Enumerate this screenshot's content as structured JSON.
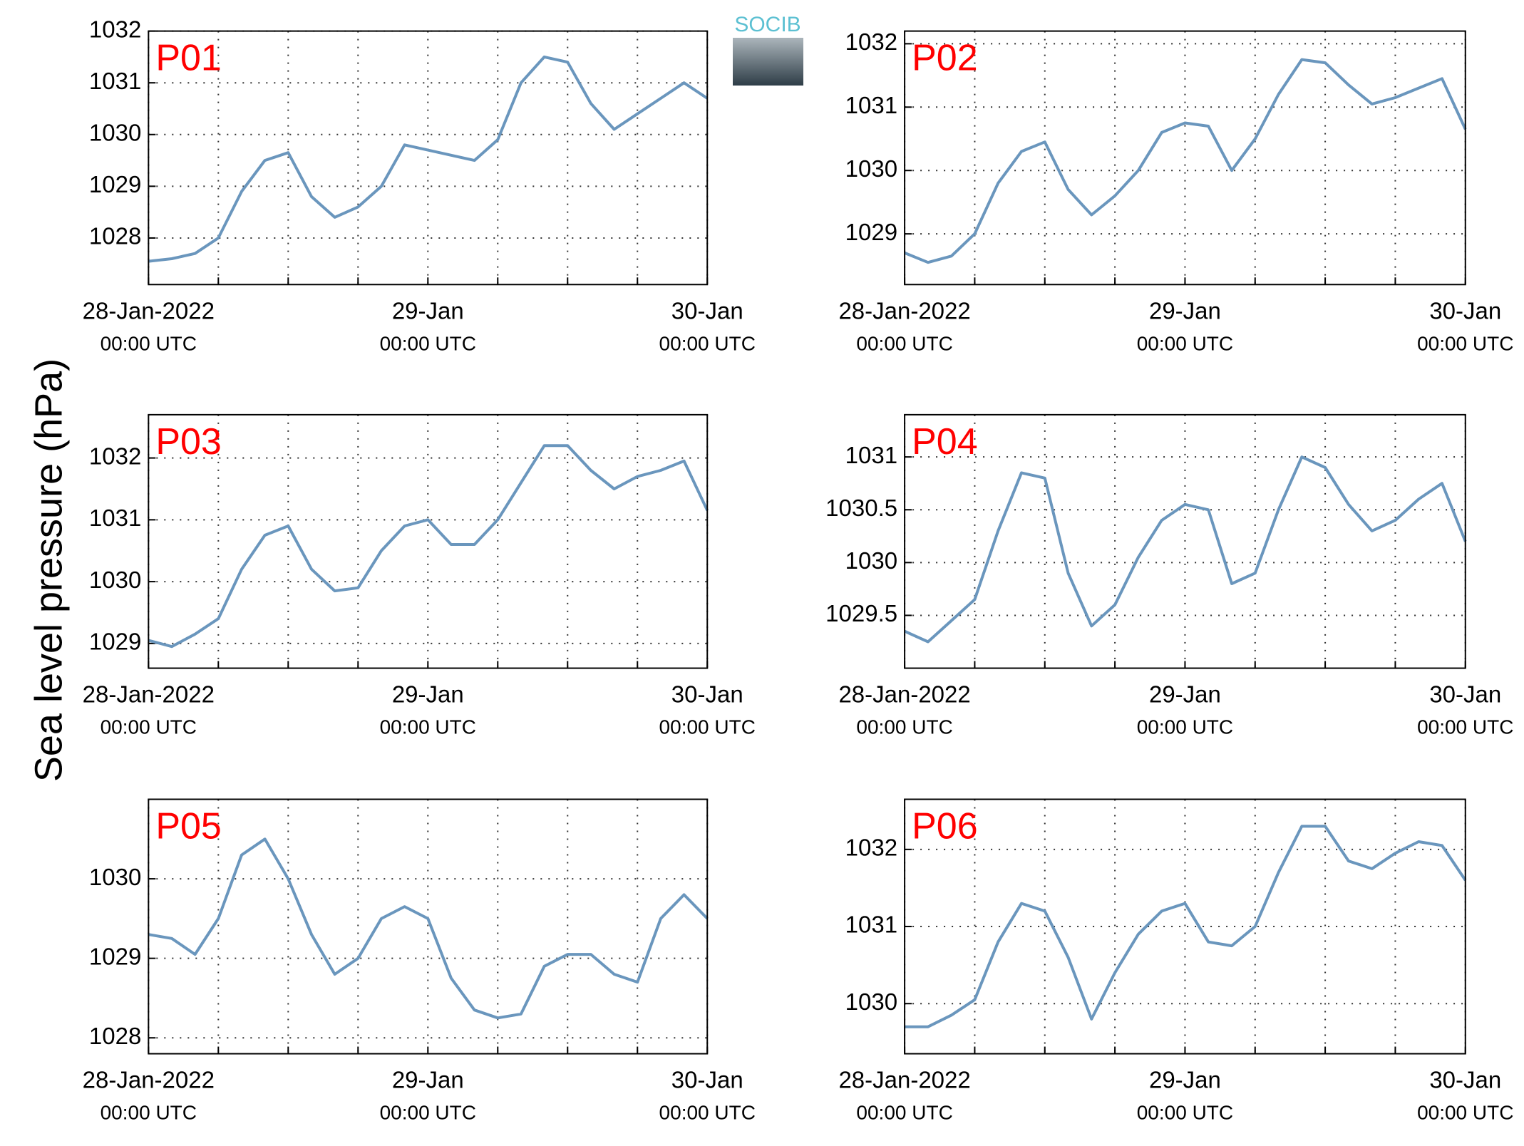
{
  "ylabel": "Sea level pressure (hPa)",
  "logo": "SOCIB",
  "chart_data": [
    {
      "type": "line",
      "title": "P01",
      "color": "#6a96bd",
      "x": [
        "2022-01-28 00:00",
        "2022-01-28 02:00",
        "2022-01-28 04:00",
        "2022-01-28 06:00",
        "2022-01-28 08:00",
        "2022-01-28 10:00",
        "2022-01-28 12:00",
        "2022-01-28 14:00",
        "2022-01-28 16:00",
        "2022-01-28 18:00",
        "2022-01-28 20:00",
        "2022-01-28 22:00",
        "2022-01-29 00:00",
        "2022-01-29 02:00",
        "2022-01-29 04:00",
        "2022-01-29 06:00",
        "2022-01-29 08:00",
        "2022-01-29 10:00",
        "2022-01-29 12:00",
        "2022-01-29 14:00",
        "2022-01-29 16:00",
        "2022-01-29 18:00",
        "2022-01-29 20:00",
        "2022-01-29 22:00",
        "2022-01-30 00:00"
      ],
      "values": [
        1027.55,
        1027.6,
        1027.7,
        1028.0,
        1028.9,
        1029.5,
        1029.65,
        1028.8,
        1028.4,
        1028.6,
        1029.0,
        1029.8,
        1029.7,
        1029.6,
        1029.5,
        1029.9,
        1031.0,
        1031.5,
        1031.4,
        1030.6,
        1030.1,
        1030.4,
        1030.7,
        1031.0,
        1030.7
      ],
      "xlim": [
        "2022-01-28 00:00",
        "2022-01-30 00:00"
      ],
      "xticks": [
        {
          "value": "2022-01-28 00:00",
          "label": "28-Jan-2022",
          "sublabel": "00:00 UTC"
        },
        {
          "value": "2022-01-28 06:00",
          "label": null
        },
        {
          "value": "2022-01-28 12:00",
          "label": null
        },
        {
          "value": "2022-01-28 18:00",
          "label": null
        },
        {
          "value": "2022-01-29 00:00",
          "label": "29-Jan",
          "sublabel": "00:00 UTC"
        },
        {
          "value": "2022-01-29 06:00",
          "label": null
        },
        {
          "value": "2022-01-29 12:00",
          "label": null
        },
        {
          "value": "2022-01-29 18:00",
          "label": null
        },
        {
          "value": "2022-01-30 00:00",
          "label": "30-Jan",
          "sublabel": "00:00 UTC"
        }
      ],
      "ylim": [
        1027.1,
        1032
      ],
      "yticks": [
        1028,
        1029,
        1030,
        1031,
        1032
      ],
      "grid": true
    },
    {
      "type": "line",
      "title": "P02",
      "color": "#6a96bd",
      "x": [
        "2022-01-28 00:00",
        "2022-01-28 02:00",
        "2022-01-28 04:00",
        "2022-01-28 06:00",
        "2022-01-28 08:00",
        "2022-01-28 10:00",
        "2022-01-28 12:00",
        "2022-01-28 14:00",
        "2022-01-28 16:00",
        "2022-01-28 18:00",
        "2022-01-28 20:00",
        "2022-01-28 22:00",
        "2022-01-29 00:00",
        "2022-01-29 02:00",
        "2022-01-29 04:00",
        "2022-01-29 06:00",
        "2022-01-29 08:00",
        "2022-01-29 10:00",
        "2022-01-29 12:00",
        "2022-01-29 14:00",
        "2022-01-29 16:00",
        "2022-01-29 18:00",
        "2022-01-29 20:00",
        "2022-01-29 22:00",
        "2022-01-30 00:00"
      ],
      "values": [
        1028.7,
        1028.55,
        1028.65,
        1029.0,
        1029.8,
        1030.3,
        1030.45,
        1029.7,
        1029.3,
        1029.6,
        1030.0,
        1030.6,
        1030.75,
        1030.7,
        1030.0,
        1030.5,
        1031.2,
        1031.75,
        1031.7,
        1031.35,
        1031.05,
        1031.15,
        1031.3,
        1031.45,
        1030.65
      ],
      "xlim": [
        "2022-01-28 00:00",
        "2022-01-30 00:00"
      ],
      "xticks": [
        {
          "value": "2022-01-28 00:00",
          "label": "28-Jan-2022",
          "sublabel": "00:00 UTC"
        },
        {
          "value": "2022-01-28 06:00",
          "label": null
        },
        {
          "value": "2022-01-28 12:00",
          "label": null
        },
        {
          "value": "2022-01-28 18:00",
          "label": null
        },
        {
          "value": "2022-01-29 00:00",
          "label": "29-Jan",
          "sublabel": "00:00 UTC"
        },
        {
          "value": "2022-01-29 06:00",
          "label": null
        },
        {
          "value": "2022-01-29 12:00",
          "label": null
        },
        {
          "value": "2022-01-29 18:00",
          "label": null
        },
        {
          "value": "2022-01-30 00:00",
          "label": "30-Jan",
          "sublabel": "00:00 UTC"
        }
      ],
      "ylim": [
        1028.2,
        1032.2
      ],
      "yticks": [
        1029,
        1030,
        1031,
        1032
      ],
      "grid": true
    },
    {
      "type": "line",
      "title": "P03",
      "color": "#6a96bd",
      "x": [
        "2022-01-28 00:00",
        "2022-01-28 02:00",
        "2022-01-28 04:00",
        "2022-01-28 06:00",
        "2022-01-28 08:00",
        "2022-01-28 10:00",
        "2022-01-28 12:00",
        "2022-01-28 14:00",
        "2022-01-28 16:00",
        "2022-01-28 18:00",
        "2022-01-28 20:00",
        "2022-01-28 22:00",
        "2022-01-29 00:00",
        "2022-01-29 02:00",
        "2022-01-29 04:00",
        "2022-01-29 06:00",
        "2022-01-29 08:00",
        "2022-01-29 10:00",
        "2022-01-29 12:00",
        "2022-01-29 14:00",
        "2022-01-29 16:00",
        "2022-01-29 18:00",
        "2022-01-29 20:00",
        "2022-01-29 22:00",
        "2022-01-30 00:00"
      ],
      "values": [
        1029.05,
        1028.95,
        1029.15,
        1029.4,
        1030.2,
        1030.75,
        1030.9,
        1030.2,
        1029.85,
        1029.9,
        1030.5,
        1030.9,
        1031.0,
        1030.6,
        1030.6,
        1031.0,
        1031.6,
        1032.2,
        1032.2,
        1031.8,
        1031.5,
        1031.7,
        1031.8,
        1031.95,
        1031.15
      ],
      "xlim": [
        "2022-01-28 00:00",
        "2022-01-30 00:00"
      ],
      "xticks": [
        {
          "value": "2022-01-28 00:00",
          "label": "28-Jan-2022",
          "sublabel": "00:00 UTC"
        },
        {
          "value": "2022-01-28 06:00",
          "label": null
        },
        {
          "value": "2022-01-28 12:00",
          "label": null
        },
        {
          "value": "2022-01-28 18:00",
          "label": null
        },
        {
          "value": "2022-01-29 00:00",
          "label": "29-Jan",
          "sublabel": "00:00 UTC"
        },
        {
          "value": "2022-01-29 06:00",
          "label": null
        },
        {
          "value": "2022-01-29 12:00",
          "label": null
        },
        {
          "value": "2022-01-29 18:00",
          "label": null
        },
        {
          "value": "2022-01-30 00:00",
          "label": "30-Jan",
          "sublabel": "00:00 UTC"
        }
      ],
      "ylim": [
        1028.6,
        1032.7
      ],
      "yticks": [
        1029,
        1030,
        1031,
        1032
      ],
      "grid": true
    },
    {
      "type": "line",
      "title": "P04",
      "color": "#6a96bd",
      "x": [
        "2022-01-28 00:00",
        "2022-01-28 02:00",
        "2022-01-28 04:00",
        "2022-01-28 06:00",
        "2022-01-28 08:00",
        "2022-01-28 10:00",
        "2022-01-28 12:00",
        "2022-01-28 14:00",
        "2022-01-28 16:00",
        "2022-01-28 18:00",
        "2022-01-28 20:00",
        "2022-01-28 22:00",
        "2022-01-29 00:00",
        "2022-01-29 02:00",
        "2022-01-29 04:00",
        "2022-01-29 06:00",
        "2022-01-29 08:00",
        "2022-01-29 10:00",
        "2022-01-29 12:00",
        "2022-01-29 14:00",
        "2022-01-29 16:00",
        "2022-01-29 18:00",
        "2022-01-29 20:00",
        "2022-01-29 22:00",
        "2022-01-30 00:00"
      ],
      "values": [
        1029.35,
        1029.25,
        1029.45,
        1029.65,
        1030.3,
        1030.85,
        1030.8,
        1029.9,
        1029.4,
        1029.6,
        1030.05,
        1030.4,
        1030.55,
        1030.5,
        1029.8,
        1029.9,
        1030.5,
        1031.0,
        1030.9,
        1030.55,
        1030.3,
        1030.4,
        1030.6,
        1030.75,
        1030.2
      ],
      "xlim": [
        "2022-01-28 00:00",
        "2022-01-30 00:00"
      ],
      "xticks": [
        {
          "value": "2022-01-28 00:00",
          "label": "28-Jan-2022",
          "sublabel": "00:00 UTC"
        },
        {
          "value": "2022-01-28 06:00",
          "label": null
        },
        {
          "value": "2022-01-28 12:00",
          "label": null
        },
        {
          "value": "2022-01-28 18:00",
          "label": null
        },
        {
          "value": "2022-01-29 00:00",
          "label": "29-Jan",
          "sublabel": "00:00 UTC"
        },
        {
          "value": "2022-01-29 06:00",
          "label": null
        },
        {
          "value": "2022-01-29 12:00",
          "label": null
        },
        {
          "value": "2022-01-29 18:00",
          "label": null
        },
        {
          "value": "2022-01-30 00:00",
          "label": "30-Jan",
          "sublabel": "00:00 UTC"
        }
      ],
      "ylim": [
        1029.0,
        1031.4
      ],
      "yticks": [
        1029.5,
        1030,
        1030.5,
        1031
      ],
      "grid": true
    },
    {
      "type": "line",
      "title": "P05",
      "color": "#6a96bd",
      "x": [
        "2022-01-28 00:00",
        "2022-01-28 02:00",
        "2022-01-28 04:00",
        "2022-01-28 06:00",
        "2022-01-28 08:00",
        "2022-01-28 10:00",
        "2022-01-28 12:00",
        "2022-01-28 14:00",
        "2022-01-28 16:00",
        "2022-01-28 18:00",
        "2022-01-28 20:00",
        "2022-01-28 22:00",
        "2022-01-29 00:00",
        "2022-01-29 02:00",
        "2022-01-29 04:00",
        "2022-01-29 06:00",
        "2022-01-29 08:00",
        "2022-01-29 10:00",
        "2022-01-29 12:00",
        "2022-01-29 14:00",
        "2022-01-29 16:00",
        "2022-01-29 18:00",
        "2022-01-29 20:00",
        "2022-01-29 22:00",
        "2022-01-30 00:00"
      ],
      "values": [
        1029.3,
        1029.25,
        1029.05,
        1029.5,
        1030.3,
        1030.5,
        1030.0,
        1029.3,
        1028.8,
        1029.0,
        1029.5,
        1029.65,
        1029.5,
        1028.75,
        1028.35,
        1028.25,
        1028.3,
        1028.9,
        1029.05,
        1029.05,
        1028.8,
        1028.7,
        1029.5,
        1029.8,
        1029.5
      ],
      "xlim": [
        "2022-01-28 00:00",
        "2022-01-30 00:00"
      ],
      "xticks": [
        {
          "value": "2022-01-28 00:00",
          "label": "28-Jan-2022",
          "sublabel": "00:00 UTC"
        },
        {
          "value": "2022-01-28 06:00",
          "label": null
        },
        {
          "value": "2022-01-28 12:00",
          "label": null
        },
        {
          "value": "2022-01-28 18:00",
          "label": null
        },
        {
          "value": "2022-01-29 00:00",
          "label": "29-Jan",
          "sublabel": "00:00 UTC"
        },
        {
          "value": "2022-01-29 06:00",
          "label": null
        },
        {
          "value": "2022-01-29 12:00",
          "label": null
        },
        {
          "value": "2022-01-29 18:00",
          "label": null
        },
        {
          "value": "2022-01-30 00:00",
          "label": "30-Jan",
          "sublabel": "00:00 UTC"
        }
      ],
      "ylim": [
        1027.8,
        1031
      ],
      "yticks": [
        1028,
        1029,
        1030
      ],
      "grid": true
    },
    {
      "type": "line",
      "title": "P06",
      "color": "#6a96bd",
      "x": [
        "2022-01-28 00:00",
        "2022-01-28 02:00",
        "2022-01-28 04:00",
        "2022-01-28 06:00",
        "2022-01-28 08:00",
        "2022-01-28 10:00",
        "2022-01-28 12:00",
        "2022-01-28 14:00",
        "2022-01-28 16:00",
        "2022-01-28 18:00",
        "2022-01-28 20:00",
        "2022-01-28 22:00",
        "2022-01-29 00:00",
        "2022-01-29 02:00",
        "2022-01-29 04:00",
        "2022-01-29 06:00",
        "2022-01-29 08:00",
        "2022-01-29 10:00",
        "2022-01-29 12:00",
        "2022-01-29 14:00",
        "2022-01-29 16:00",
        "2022-01-29 18:00",
        "2022-01-29 20:00",
        "2022-01-29 22:00",
        "2022-01-30 00:00"
      ],
      "values": [
        1029.7,
        1029.7,
        1029.85,
        1030.05,
        1030.8,
        1031.3,
        1031.2,
        1030.6,
        1029.8,
        1030.4,
        1030.9,
        1031.2,
        1031.3,
        1030.8,
        1030.75,
        1031.0,
        1031.7,
        1032.3,
        1032.3,
        1031.85,
        1031.75,
        1031.95,
        1032.1,
        1032.05,
        1031.6
      ],
      "xlim": [
        "2022-01-28 00:00",
        "2022-01-30 00:00"
      ],
      "xticks": [
        {
          "value": "2022-01-28 00:00",
          "label": "28-Jan-2022",
          "sublabel": "00:00 UTC"
        },
        {
          "value": "2022-01-28 06:00",
          "label": null
        },
        {
          "value": "2022-01-28 12:00",
          "label": null
        },
        {
          "value": "2022-01-28 18:00",
          "label": null
        },
        {
          "value": "2022-01-29 00:00",
          "label": "29-Jan",
          "sublabel": "00:00 UTC"
        },
        {
          "value": "2022-01-29 06:00",
          "label": null
        },
        {
          "value": "2022-01-29 12:00",
          "label": null
        },
        {
          "value": "2022-01-29 18:00",
          "label": null
        },
        {
          "value": "2022-01-30 00:00",
          "label": "30-Jan",
          "sublabel": "00:00 UTC"
        }
      ],
      "ylim": [
        1029.35,
        1032.65
      ],
      "yticks": [
        1030,
        1031,
        1032
      ],
      "grid": true
    }
  ]
}
